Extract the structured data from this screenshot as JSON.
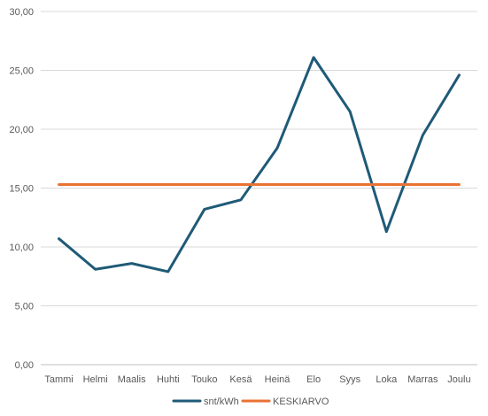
{
  "chart_data": {
    "type": "line",
    "title": "",
    "xlabel": "",
    "ylabel": "",
    "categories": [
      "Tammi",
      "Helmi",
      "Maalis",
      "Huhti",
      "Touko",
      "Kesä",
      "Heinä",
      "Elo",
      "Syys",
      "Loka",
      "Marras",
      "Joulu"
    ],
    "ylim": [
      0,
      30
    ],
    "yticks": [
      "0,00",
      "5,00",
      "10,00",
      "15,00",
      "20,00",
      "25,00",
      "30,00"
    ],
    "grid": true,
    "legend": "bottom",
    "series": [
      {
        "name": "snt/kWh",
        "color": "#1f5a77",
        "values": [
          10.7,
          8.1,
          8.6,
          7.9,
          13.2,
          14.0,
          18.4,
          26.1,
          21.5,
          11.3,
          19.5,
          24.6
        ]
      },
      {
        "name": "KESKIARVO",
        "color": "#e97132",
        "values": [
          15.3,
          15.3,
          15.3,
          15.3,
          15.3,
          15.3,
          15.3,
          15.3,
          15.3,
          15.3,
          15.3,
          15.3
        ]
      }
    ]
  }
}
